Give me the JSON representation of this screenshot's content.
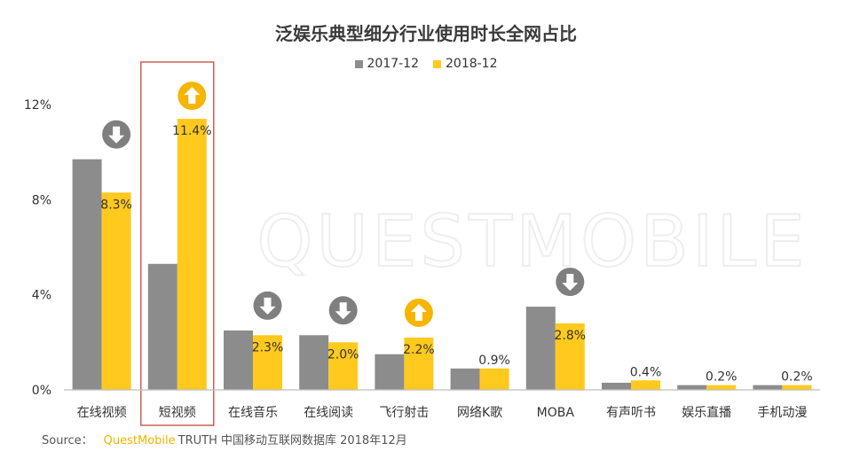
{
  "chart_data": {
    "type": "bar",
    "title": "泛娱乐典型细分行业使用时长全网占比",
    "categories": [
      "在线视频",
      "短视频",
      "在线音乐",
      "在线阅读",
      "飞行射击",
      "网络K歌",
      "MOBA",
      "有声听书",
      "娱乐直播",
      "手机动漫"
    ],
    "series": [
      {
        "name": "2017-12",
        "color": "#8c8c8c",
        "values": [
          9.7,
          5.3,
          2.5,
          2.3,
          1.5,
          0.9,
          3.5,
          0.3,
          0.2,
          0.2
        ]
      },
      {
        "name": "2018-12",
        "color": "#ffc91e",
        "values": [
          8.3,
          11.4,
          2.3,
          2.0,
          2.2,
          0.9,
          2.8,
          0.4,
          0.2,
          0.2
        ]
      }
    ],
    "data_labels": [
      "8.3%",
      "11.4%",
      "2.3%",
      "2.0%",
      "2.2%",
      "0.9%",
      "2.8%",
      "0.4%",
      "0.2%",
      "0.2%"
    ],
    "trend_arrows": [
      "down",
      "up",
      "down",
      "down",
      "up",
      "",
      "down",
      "",
      "",
      ""
    ],
    "highlighted_category": "短视频",
    "highlight_color": "#c0392b",
    "arrow_colors": {
      "up": "#f7b500",
      "down": "#7f7f7f"
    },
    "yticks": [
      "0%",
      "4%",
      "8%",
      "12%"
    ],
    "ytick_values": [
      0,
      4,
      8,
      12
    ],
    "ylim": [
      0,
      12
    ],
    "grid": false,
    "legend_position": "top-center",
    "watermark": "QUESTMOBILE"
  },
  "source": {
    "prefix": "Source：",
    "brand": "QuestMobile",
    "text": "TRUTH 中国移动互联网数据库 2018年12月"
  }
}
